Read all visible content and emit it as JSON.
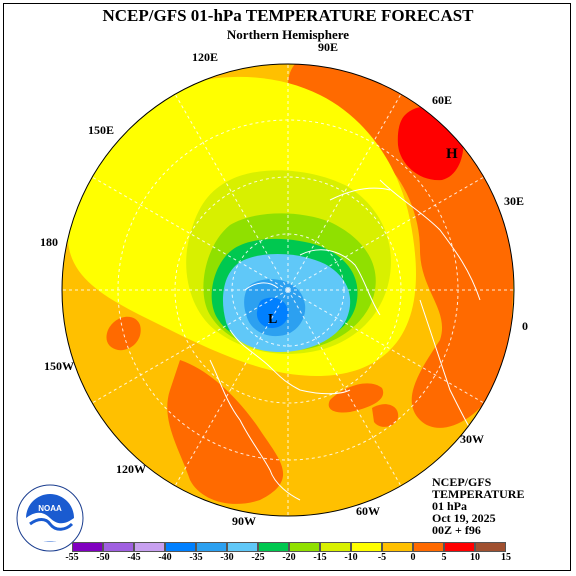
{
  "title": "NCEP/GFS 01-hPa TEMPERATURE FORECAST",
  "subtitle": "Northern Hemisphere",
  "longitude_labels": [
    "90E",
    "120E",
    "60E",
    "150E",
    "30E",
    "180",
    "0",
    "150W",
    "30W",
    "120W",
    "60W",
    "90W"
  ],
  "markers": {
    "high": "H",
    "low": "L"
  },
  "info_block": [
    "NCEP/GFS",
    "TEMPERATURE",
    "01 hPa",
    "Oct 19, 2025",
    "00Z + f96"
  ],
  "logo": {
    "name": "noaa-logo",
    "text": "NOAA"
  },
  "colorbar": {
    "ticks": [
      "-55",
      "-50",
      "-45",
      "-40",
      "-35",
      "-30",
      "-25",
      "-20",
      "-15",
      "-10",
      "-5",
      "0",
      "5",
      "10",
      "15"
    ],
    "colors": [
      "#8000c0",
      "#a060e0",
      "#c8a0f0",
      "#0080ff",
      "#2ca0f0",
      "#60c8f8",
      "#00c850",
      "#90e000",
      "#d8f000",
      "#ffff00",
      "#ffc000",
      "#ff6a00",
      "#ff0000",
      "#a05030"
    ]
  },
  "colors": {
    "ocean_fill": "#ffc000",
    "grid": "#ffffff",
    "coast": "#ffffff"
  }
}
